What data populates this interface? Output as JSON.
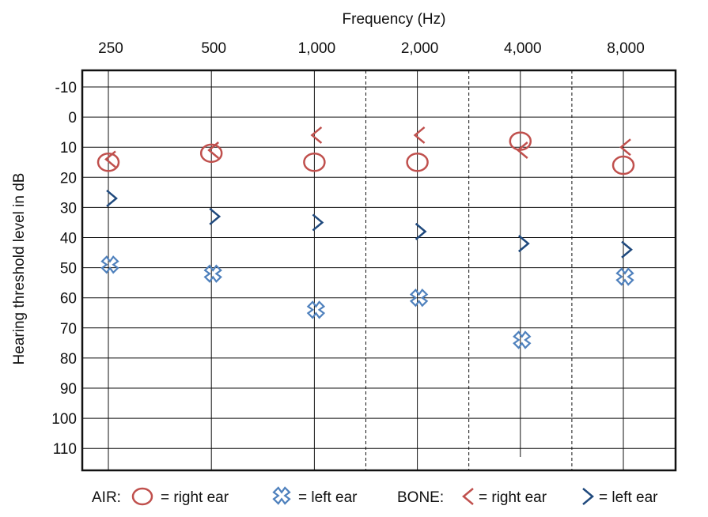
{
  "chart_data": {
    "type": "scatter",
    "title": "Frequency (Hz)",
    "xlabel": "",
    "ylabel": "Hearing threshold level in dB",
    "x_tick_labels": [
      "250",
      "500",
      "1,000",
      "2,000",
      "4,000",
      "8,000"
    ],
    "y_ticks": [
      -10,
      0,
      10,
      20,
      30,
      40,
      50,
      60,
      70,
      80,
      90,
      100,
      110
    ],
    "ylim": [
      -10,
      110
    ],
    "y_inverted": true,
    "x_scale": "log (octave spacing)",
    "grid": true,
    "legend_position": "bottom",
    "series": [
      {
        "key": "air_right",
        "x": [
          250,
          500,
          1000,
          2000,
          4000,
          8000
        ],
        "values": [
          15,
          12,
          15,
          15,
          8,
          16
        ],
        "color": "#c0504d",
        "marker": "circle-icon"
      },
      {
        "key": "air_left",
        "x": [
          250,
          500,
          1000,
          2000,
          4000,
          8000
        ],
        "values": [
          49,
          52,
          64,
          60,
          74,
          53
        ],
        "color": "#4f81bd",
        "marker": "x-cross-icon"
      },
      {
        "key": "bone_right",
        "x": [
          250,
          500,
          1000,
          2000,
          4000,
          8000
        ],
        "values": [
          14,
          11,
          6,
          6,
          11,
          10
        ],
        "color": "#c0504d",
        "marker": "less-than-icon"
      },
      {
        "key": "bone_left",
        "x": [
          250,
          500,
          1000,
          2000,
          4000,
          8000
        ],
        "values": [
          27,
          33,
          35,
          38,
          42,
          44
        ],
        "color": "#1f497d",
        "marker": "greater-than-icon"
      }
    ]
  },
  "legend": {
    "air_label": "AIR:",
    "air_right_label": "= right ear",
    "air_left_label": "= left ear",
    "bone_label": "BONE:",
    "bone_right_label": "= right ear",
    "bone_left_label": "= left ear"
  }
}
